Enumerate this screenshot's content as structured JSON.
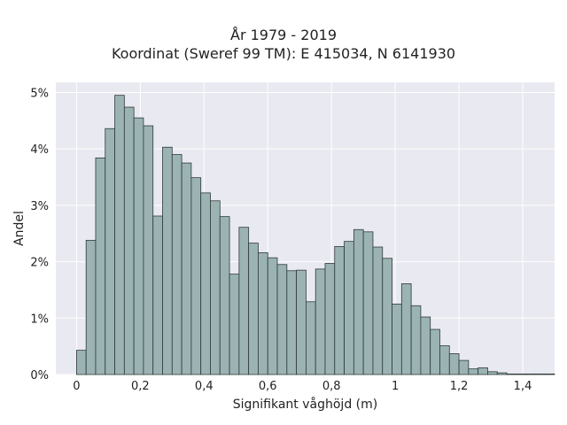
{
  "chart_data": {
    "type": "bar",
    "title": "År 1979 - 2019",
    "subtitle": "Koordinat (Sweref 99 TM): E 415034, N 6141930",
    "xlabel": "Signifikant våghöjd (m)",
    "ylabel": "Andel",
    "bin_width": 0.03,
    "bin_start": 0,
    "xlim": [
      -0.065,
      1.5
    ],
    "ylim": [
      0,
      0.0518
    ],
    "x_ticks": [
      0,
      0.2,
      0.4,
      0.6,
      0.8,
      1,
      1.2,
      1.4
    ],
    "x_tick_labels": [
      "0",
      "0,2",
      "0,4",
      "0,6",
      "0,8",
      "1",
      "1,2",
      "1,4"
    ],
    "y_ticks": [
      0,
      0.01,
      0.02,
      0.03,
      0.04,
      0.05
    ],
    "y_tick_labels": [
      "0%",
      "1%",
      "2%",
      "3%",
      "4%",
      "5%"
    ],
    "values": [
      0.0043,
      0.0238,
      0.0384,
      0.0436,
      0.0495,
      0.0474,
      0.0455,
      0.0441,
      0.0281,
      0.0403,
      0.039,
      0.0375,
      0.0349,
      0.0322,
      0.0308,
      0.028,
      0.0178,
      0.0261,
      0.0233,
      0.0216,
      0.0207,
      0.0195,
      0.0184,
      0.0185,
      0.0129,
      0.0187,
      0.0197,
      0.0227,
      0.0236,
      0.0257,
      0.0253,
      0.0226,
      0.0206,
      0.0125,
      0.0161,
      0.0122,
      0.0102,
      0.008,
      0.0051,
      0.0037,
      0.0025,
      0.001,
      0.0012,
      0.0005,
      0.0003,
      0.0001,
      0.0001,
      0.0001,
      0.0001,
      0.0001
    ],
    "colors": {
      "bar_fill": "#9cb3b3",
      "bar_stroke": "#2f3a3a",
      "plot_bg": "#e9e9f1",
      "grid": "#ffffff"
    },
    "grid": true,
    "legend": "none"
  }
}
